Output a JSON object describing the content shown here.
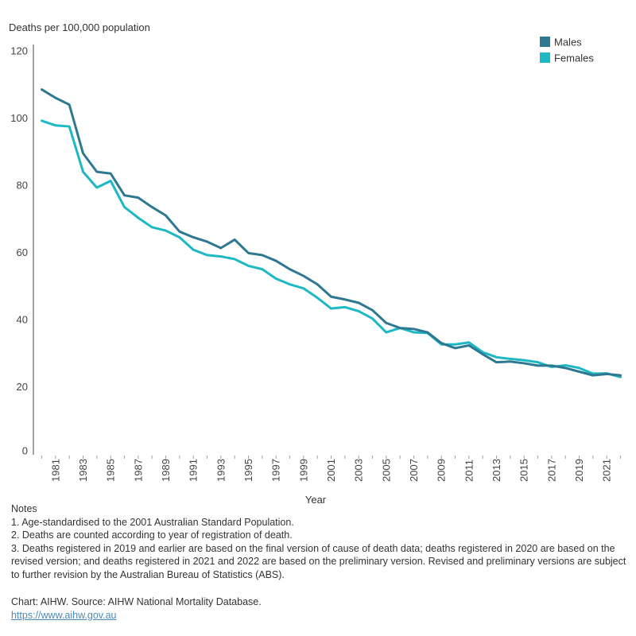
{
  "chart_data": {
    "type": "line",
    "title": "",
    "ylabel": "Deaths per 100,000 population",
    "xlabel": "Year",
    "ylim": [
      0,
      120
    ],
    "yticks": [
      0,
      20,
      40,
      60,
      80,
      100,
      120
    ],
    "grid": false,
    "legend_position": "top-right",
    "x": [
      1980,
      1981,
      1982,
      1983,
      1984,
      1985,
      1986,
      1987,
      1988,
      1989,
      1990,
      1991,
      1992,
      1993,
      1994,
      1995,
      1996,
      1997,
      1998,
      1999,
      2000,
      2001,
      2002,
      2003,
      2004,
      2005,
      2006,
      2007,
      2008,
      2009,
      2010,
      2011,
      2012,
      2013,
      2014,
      2015,
      2016,
      2017,
      2018,
      2019,
      2020,
      2021,
      2022
    ],
    "xtick_labels": [
      "1981",
      "1983",
      "1985",
      "1987",
      "1989",
      "1991",
      "1993",
      "1995",
      "1997",
      "1999",
      "2001",
      "2003",
      "2005",
      "2007",
      "2009",
      "2011",
      "2013",
      "2015",
      "2017",
      "2019",
      "2021"
    ],
    "series": [
      {
        "name": "Males",
        "color": "#2e7891",
        "values": [
          108.5,
          106,
          104,
          89.5,
          84,
          83.5,
          77,
          76.3,
          73.5,
          71,
          66.2,
          64.5,
          63.2,
          61.3,
          63.8,
          59.8,
          59.2,
          57.5,
          55,
          53,
          50.5,
          46.8,
          46,
          45,
          42.8,
          39,
          37.5,
          37.2,
          36.2,
          33,
          31.5,
          32.3,
          29.7,
          27.3,
          27.5,
          27,
          26.3,
          26.3,
          25.6,
          24.5,
          23.4,
          23.8,
          23.4
        ]
      },
      {
        "name": "Females",
        "color": "#1cb8c4",
        "values": [
          99.2,
          97.8,
          97.5,
          84,
          79.3,
          81.3,
          73.5,
          70.3,
          67.5,
          66.5,
          64.5,
          60.8,
          59.2,
          58.8,
          58,
          56,
          55,
          52.2,
          50.5,
          49.3,
          46.5,
          43.3,
          43.7,
          42.5,
          40.3,
          36.2,
          37.5,
          36.2,
          36,
          32.6,
          32.6,
          33.2,
          30.3,
          28.8,
          28.3,
          27.9,
          27.3,
          25.9,
          26.4,
          25.6,
          23.9,
          24,
          22.9
        ]
      }
    ]
  },
  "notes": {
    "heading": "Notes",
    "items": [
      "1. Age-standardised to the 2001 Australian Standard Population.",
      "2. Deaths are counted according to year of registration of death.",
      "3. Deaths registered in 2019 and earlier are based on the final version of cause of death data; deaths registered in 2020 are based on the revised version; and deaths registered in 2021 and 2022 are based on the preliminary version. Revised and preliminary versions are subject to further revision by the Australian Bureau of Statistics (ABS)."
    ]
  },
  "source": {
    "text": "Chart: AIHW. Source: AIHW National Mortality Database.",
    "link": "https://www.aihw.gov.au"
  }
}
